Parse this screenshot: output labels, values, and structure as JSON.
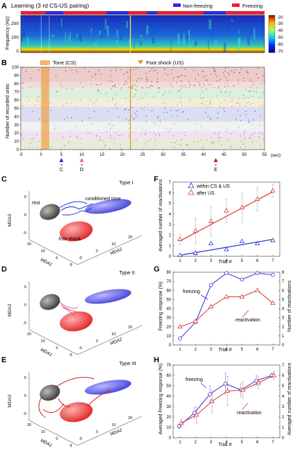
{
  "panelA": {
    "letter": "A",
    "title": "Learning (3 rd CS-US pairing)",
    "legend": [
      {
        "label": "Non-freezing",
        "color": "#2a2fd6"
      },
      {
        "label": "Freezing",
        "color": "#e8202a"
      }
    ],
    "ylabel": "Frequency (Hz)",
    "yticks": [
      "200",
      "100",
      "0"
    ],
    "colorbar_ticks": [
      "-20",
      "-30",
      "-40",
      "-50",
      "-60",
      "-70"
    ],
    "state_bar": [
      {
        "state": "freezing",
        "from": -5,
        "to": 1
      },
      {
        "state": "non-freezing",
        "from": 1,
        "to": 5.5
      },
      {
        "state": "freezing",
        "from": 5.5,
        "to": 16
      },
      {
        "state": "non-freezing",
        "from": 16,
        "to": 21.5
      },
      {
        "state": "freezing",
        "from": 21.5,
        "to": 26
      },
      {
        "state": "non-freezing",
        "from": 26,
        "to": 28.5
      },
      {
        "state": "freezing",
        "from": 28.5,
        "to": 40
      },
      {
        "state": "non-freezing",
        "from": 40,
        "to": 45.5
      },
      {
        "state": "freezing",
        "from": 45.5,
        "to": 55
      }
    ]
  },
  "panelB": {
    "letter": "B",
    "tone_label": "Tone (CS)",
    "shock_label": "Foot shock (US)",
    "ylabel": "Number of recorded units",
    "yticks": [
      "100",
      "90",
      "80",
      "70",
      "60",
      "50",
      "40",
      "30",
      "20",
      "10",
      "0"
    ],
    "xticks": [
      "-5",
      "0",
      "5",
      "10",
      "15",
      "20",
      "25",
      "30",
      "35",
      "40",
      "45",
      "50",
      "55"
    ],
    "xunit": "(sec)",
    "tone_window": [
      0,
      2
    ],
    "shock_time": 22,
    "markers": [
      {
        "label": "C",
        "t": 5,
        "color": "#2a2fd6"
      },
      {
        "label": "D",
        "t": 10,
        "color": "#e860c8"
      },
      {
        "label": "E",
        "t": 43,
        "color": "#b03010"
      }
    ]
  },
  "panelC": {
    "letter": "C",
    "type": "Type I",
    "labels": [
      "conditioned tone",
      "rest",
      "foot shock"
    ]
  },
  "panelD": {
    "letter": "D",
    "type": "Type II"
  },
  "panelE": {
    "letter": "E",
    "type": "Type III"
  },
  "axes3d": {
    "zlabel": "MDA3",
    "xlabel": "MDA1",
    "ylabel": "MDA2",
    "zticks": [
      "5",
      "0",
      "-5"
    ],
    "xticks": [
      "20",
      "10",
      "0",
      "-5"
    ],
    "yticks": [
      "-5",
      "0",
      "10",
      "20"
    ]
  },
  "panelF": {
    "letter": "F",
    "ylabel": "Averaged number of reactivations",
    "xlabel": "Trial #",
    "legend": [
      "within CS & US",
      "after US"
    ],
    "yticks": [
      "0",
      "1",
      "2",
      "3",
      "4",
      "5",
      "6",
      "7"
    ],
    "xticks": [
      "1",
      "2",
      "3",
      "4",
      "5",
      "6",
      "7"
    ]
  },
  "panelG": {
    "letter": "G",
    "ylabel_left": "Freezing response (%)",
    "ylabel_right": "Number of reactivations",
    "xlabel": "Trial #",
    "series_labels": [
      "freezing",
      "reactivation"
    ],
    "yticks_left": [
      "0",
      "10",
      "20",
      "30",
      "40",
      "50",
      "60",
      "70",
      "80"
    ],
    "yticks_right": [
      "0",
      "1",
      "2",
      "3",
      "4",
      "5",
      "6",
      "7",
      "8"
    ],
    "xticks": [
      "1",
      "2",
      "3",
      "4",
      "5",
      "6",
      "7"
    ]
  },
  "panelH": {
    "letter": "H",
    "ylabel_left": "Averaged Freezing response (%)",
    "ylabel_right": "Averaged number of reactivations",
    "xlabel": "Trial #",
    "series_labels": [
      "freezing",
      "reactivation"
    ],
    "yticks_left": [
      "0",
      "10",
      "20",
      "30",
      "40",
      "50",
      "60",
      "70"
    ],
    "yticks_right": [
      "0",
      "1",
      "2",
      "3",
      "4",
      "5",
      "6",
      "7"
    ],
    "xticks": [
      "1",
      "2",
      "3",
      "4",
      "5",
      "6",
      "7"
    ]
  },
  "chart_data": [
    {
      "type": "scatter",
      "panel": "F",
      "x": [
        1,
        2,
        3,
        4,
        5,
        6,
        7
      ],
      "ylim": [
        0,
        7
      ],
      "series": [
        {
          "name": "within CS & US",
          "color": "#2a2fd6",
          "marker": "triangle",
          "values": [
            0.1,
            0.3,
            1.2,
            0.65,
            1.4,
            1.2,
            1.5
          ],
          "fit": [
            0.1,
            1.6
          ],
          "errors": [
            0,
            0,
            0,
            0,
            0,
            0,
            0
          ]
        },
        {
          "name": "after US",
          "color": "#d83030",
          "marker": "triangle",
          "values": [
            1.6,
            2.4,
            3.3,
            4.3,
            4.6,
            5.4,
            6.2
          ],
          "fit": [
            1.45,
            6.1
          ],
          "errors": [
            0.5,
            1.2,
            1.4,
            1.1,
            1.4,
            1.1,
            0.6
          ]
        }
      ]
    },
    {
      "type": "line",
      "panel": "G",
      "x": [
        1,
        2,
        3,
        4,
        5,
        6,
        7
      ],
      "series": [
        {
          "name": "freezing",
          "axis": "left",
          "ylim": [
            0,
            80
          ],
          "color": "#2a2fd6",
          "marker": "circle",
          "values": [
            7,
            25,
            66,
            79,
            72,
            79,
            77
          ]
        },
        {
          "name": "reactivation",
          "axis": "right",
          "ylim": [
            0,
            8
          ],
          "color": "#d83030",
          "marker": "triangle",
          "values": [
            2,
            2.6,
            4.2,
            5.3,
            5.3,
            6.0,
            4.6
          ]
        }
      ]
    },
    {
      "type": "line",
      "panel": "H",
      "x": [
        1,
        2,
        3,
        4,
        5,
        6,
        7
      ],
      "series": [
        {
          "name": "freezing",
          "axis": "left",
          "ylim": [
            0,
            70
          ],
          "color": "#2a2fd6",
          "marker": "circle",
          "values": [
            11,
            24,
            42,
            52,
            46,
            55,
            60
          ],
          "errors": [
            2,
            5,
            8,
            10,
            6,
            5,
            2
          ]
        },
        {
          "name": "reactivation",
          "axis": "right",
          "ylim": [
            0,
            7
          ],
          "color": "#d83030",
          "marker": "triangle",
          "values": [
            1.4,
            2.2,
            3.5,
            4.5,
            4.6,
            5.3,
            6.0
          ],
          "errors": [
            0.4,
            0.8,
            1.1,
            1.4,
            0.8,
            0.6,
            0.4
          ]
        }
      ]
    }
  ]
}
